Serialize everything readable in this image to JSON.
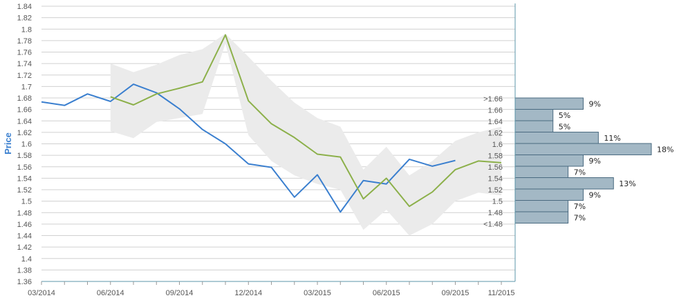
{
  "chart_data": {
    "type": "line",
    "ylabel": "Price",
    "ylim": [
      1.36,
      1.84
    ],
    "y_tick_step": 0.02,
    "y_ticks": [
      "1.84",
      "1.82",
      "1.8",
      "1.78",
      "1.76",
      "1.74",
      "1.72",
      "1.7",
      "1.68",
      "1.66",
      "1.64",
      "1.62",
      "1.6",
      "1.58",
      "1.56",
      "1.54",
      "1.52",
      "1.5",
      "1.48",
      "1.46",
      "1.44",
      "1.42",
      "1.4",
      "1.38",
      "1.36"
    ],
    "x_tick_labels": [
      "03/2014",
      "06/2014",
      "09/2014",
      "12/2014",
      "03/2015",
      "06/2015",
      "09/2015",
      "11/2015"
    ],
    "x_tick_months": [
      0,
      3,
      6,
      9,
      12,
      15,
      18,
      20
    ],
    "grid": true,
    "colors": {
      "actual": "#3a7fcf",
      "forecast": "#8cb04a",
      "band": "#ebebeb",
      "bar_fill": "#a3b8c5",
      "bar_stroke": "#4a6a80",
      "axis": "#5b95a8"
    },
    "series": [
      {
        "key": "actual",
        "months": [
          0,
          1,
          2,
          3,
          4,
          5,
          6,
          7,
          8,
          9,
          10,
          11,
          12,
          13,
          14,
          15,
          16,
          17,
          18
        ],
        "values": [
          1.673,
          1.667,
          1.687,
          1.674,
          1.704,
          1.689,
          1.661,
          1.625,
          1.6,
          1.565,
          1.559,
          1.507,
          1.546,
          1.481,
          1.536,
          1.53,
          1.573,
          1.561,
          1.571
        ]
      },
      {
        "key": "forecast",
        "months": [
          3,
          4,
          5,
          6,
          7,
          8,
          9,
          10,
          11,
          12,
          13,
          14,
          15,
          16,
          17,
          18,
          19,
          20
        ],
        "values": [
          1.682,
          1.668,
          1.687,
          1.697,
          1.708,
          1.79,
          1.675,
          1.635,
          1.611,
          1.582,
          1.577,
          1.504,
          1.54,
          1.491,
          1.516,
          1.555,
          1.57,
          1.567
        ]
      }
    ],
    "band": {
      "months": [
        3,
        4,
        5,
        6,
        7,
        8,
        9,
        10,
        11,
        12,
        13,
        14,
        15,
        16,
        17,
        18,
        19,
        20
      ],
      "upper": [
        1.74,
        1.725,
        1.738,
        1.755,
        1.765,
        1.792,
        1.752,
        1.71,
        1.672,
        1.645,
        1.63,
        1.555,
        1.595,
        1.545,
        1.57,
        1.605,
        1.62,
        1.63
      ],
      "lower": [
        1.622,
        1.61,
        1.638,
        1.645,
        1.652,
        1.775,
        1.615,
        1.57,
        1.545,
        1.53,
        1.52,
        1.45,
        1.485,
        1.44,
        1.46,
        1.5,
        1.515,
        1.51
      ]
    },
    "distribution": {
      "bins": [
        {
          "label": ">1.66",
          "low": 1.66,
          "high": 1.68,
          "pct": 9,
          "pct_label": "9%"
        },
        {
          "label": "1.66",
          "low": 1.64,
          "high": 1.66,
          "pct": 5,
          "pct_label": "5%"
        },
        {
          "label": "1.64",
          "low": 1.62,
          "high": 1.64,
          "pct": 5,
          "pct_label": "5%"
        },
        {
          "label": "1.62",
          "low": 1.6,
          "high": 1.62,
          "pct": 11,
          "pct_label": "11%"
        },
        {
          "label": "1.6",
          "low": 1.58,
          "high": 1.6,
          "pct": 18,
          "pct_label": "18%"
        },
        {
          "label": "1.58",
          "low": 1.56,
          "high": 1.58,
          "pct": 9,
          "pct_label": "9%"
        },
        {
          "label": "1.56",
          "low": 1.54,
          "high": 1.56,
          "pct": 7,
          "pct_label": "7%"
        },
        {
          "label": "1.54",
          "low": 1.52,
          "high": 1.54,
          "pct": 13,
          "pct_label": "13%"
        },
        {
          "label": "1.52",
          "low": 1.5,
          "high": 1.52,
          "pct": 9,
          "pct_label": "9%"
        },
        {
          "label": "1.5",
          "low": 1.48,
          "high": 1.5,
          "pct": 7,
          "pct_label": "7%"
        },
        {
          "label": "1.48",
          "low": 1.46,
          "high": 1.48,
          "pct": 7,
          "pct_label": "7%"
        },
        {
          "label": "<1.48",
          "low": 1.46,
          "high": 1.46,
          "pct": 0,
          "pct_label": ""
        }
      ]
    }
  }
}
